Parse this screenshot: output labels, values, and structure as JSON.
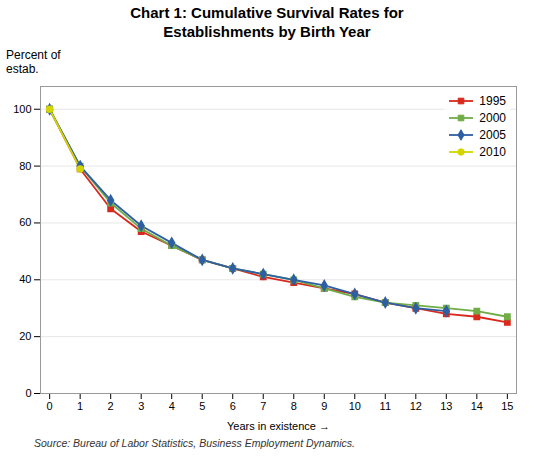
{
  "chart_data": {
    "type": "line",
    "title": "Chart 1: Cumulative Survival Rates for\nEstablishments by Birth Year",
    "xlabel": "Years in existence",
    "ylabel": "Percent of\nestab.",
    "source": "Source: Bureau of Labor Statistics, Business Employment Dynamics.",
    "x": [
      0,
      1,
      2,
      3,
      4,
      5,
      6,
      7,
      8,
      9,
      10,
      11,
      12,
      13,
      14,
      15
    ],
    "series": [
      {
        "name": "1995",
        "color": "#d9291c",
        "marker": "square",
        "values": [
          100,
          79,
          65,
          57,
          52,
          47,
          44,
          41,
          39,
          37,
          35,
          32,
          30,
          28,
          27,
          25
        ]
      },
      {
        "name": "2000",
        "color": "#70ad47",
        "marker": "square",
        "values": [
          100,
          80,
          67,
          58,
          52,
          47,
          44,
          42,
          40,
          37,
          34,
          32,
          31,
          30,
          29,
          27
        ]
      },
      {
        "name": "2005",
        "color": "#2e5fa3",
        "marker": "diamond",
        "values": [
          100,
          80,
          68,
          59,
          53,
          47,
          44,
          42,
          40,
          38,
          35,
          32,
          30,
          29,
          null,
          null
        ]
      },
      {
        "name": "2010",
        "color": "#d4d400",
        "marker": "circle",
        "values": [
          100,
          79,
          null,
          null,
          null,
          null,
          null,
          null,
          null,
          null,
          null,
          null,
          null,
          null,
          null,
          null
        ]
      }
    ],
    "xlim": [
      -0.3,
      15.3
    ],
    "xticks": [
      0,
      1,
      2,
      3,
      4,
      5,
      6,
      7,
      8,
      9,
      10,
      11,
      12,
      13,
      14,
      15
    ],
    "ylim": [
      0,
      108
    ],
    "yticks": [
      0,
      20,
      40,
      60,
      80,
      100
    ],
    "grid": true,
    "legend": "upper right"
  }
}
